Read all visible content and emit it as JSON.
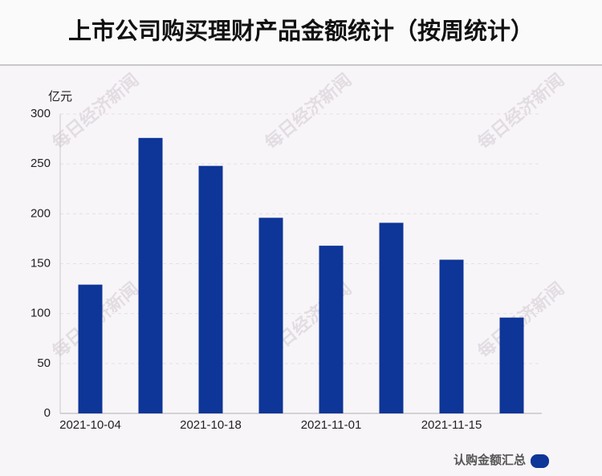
{
  "chart_data": {
    "type": "bar",
    "title": "上市公司购买理财产品金额统计（按周统计）",
    "y_label": "亿元",
    "watermark": "每日经济新闻",
    "categories": [
      "2021-10-04",
      null,
      "2021-10-18",
      null,
      "2021-11-01",
      null,
      "2021-11-15",
      null
    ],
    "series": [
      {
        "name": "认购金额汇总",
        "color": "#0e3598",
        "values": [
          129,
          276,
          248,
          196,
          168,
          191,
          154,
          96
        ]
      }
    ],
    "ylim": [
      0,
      300
    ],
    "yticks": [
      0,
      50,
      100,
      150,
      200,
      250,
      300
    ],
    "grid": true
  }
}
